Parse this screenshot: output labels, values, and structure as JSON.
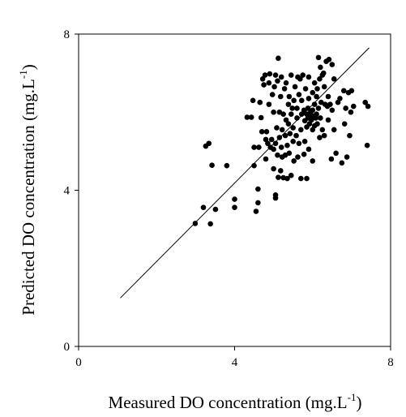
{
  "chart_data": {
    "type": "scatter",
    "title": "",
    "xlabel": "Measured DO concentration (mg.L",
    "xlabel_sup": "-1",
    "xlabel_end": ")",
    "ylabel": "Predicted DO concentration (mg.L",
    "ylabel_sup": "-1",
    "ylabel_end": ")",
    "xlim": [
      0,
      8
    ],
    "ylim": [
      0,
      8
    ],
    "xticks": [
      "0",
      "4",
      "8"
    ],
    "yticks": [
      "0",
      "4",
      "8"
    ],
    "grid": false,
    "line": {
      "x": [
        1.07,
        7.45
      ],
      "y": [
        1.24,
        7.65
      ]
    },
    "points": [
      [
        2.99,
        3.15
      ],
      [
        3.2,
        3.56
      ],
      [
        3.26,
        5.13
      ],
      [
        3.34,
        5.2
      ],
      [
        3.38,
        3.14
      ],
      [
        3.42,
        4.64
      ],
      [
        3.51,
        3.51
      ],
      [
        3.8,
        4.63
      ],
      [
        4.0,
        3.77
      ],
      [
        4.0,
        3.56
      ],
      [
        4.32,
        5.87
      ],
      [
        4.43,
        5.87
      ],
      [
        4.47,
        6.3
      ],
      [
        4.5,
        4.63
      ],
      [
        4.5,
        5.1
      ],
      [
        4.55,
        3.46
      ],
      [
        4.6,
        3.68
      ],
      [
        4.6,
        4.03
      ],
      [
        4.62,
        5.1
      ],
      [
        4.65,
        6.25
      ],
      [
        4.68,
        5.86
      ],
      [
        4.7,
        5.5
      ],
      [
        4.72,
        6.85
      ],
      [
        4.75,
        6.7
      ],
      [
        4.78,
        6.95
      ],
      [
        4.8,
        4.8
      ],
      [
        4.8,
        5.3
      ],
      [
        4.82,
        5.5
      ],
      [
        4.85,
        5.2
      ],
      [
        4.88,
        6.2
      ],
      [
        4.88,
        6.75
      ],
      [
        4.9,
        6.98
      ],
      [
        4.92,
        5.1
      ],
      [
        4.95,
        5.3
      ],
      [
        4.97,
        6.45
      ],
      [
        5.0,
        4.55
      ],
      [
        5.0,
        5.05
      ],
      [
        5.0,
        6.0
      ],
      [
        5.02,
        6.65
      ],
      [
        5.05,
        3.8
      ],
      [
        5.05,
        3.88
      ],
      [
        5.05,
        6.95
      ],
      [
        5.05,
        5.2
      ],
      [
        5.08,
        5.6
      ],
      [
        5.1,
        4.9
      ],
      [
        5.1,
        6.8
      ],
      [
        5.12,
        4.33
      ],
      [
        5.12,
        7.38
      ],
      [
        5.15,
        5.35
      ],
      [
        5.15,
        6.0
      ],
      [
        5.18,
        4.5
      ],
      [
        5.18,
        6.4
      ],
      [
        5.2,
        5.1
      ],
      [
        5.2,
        6.9
      ],
      [
        5.22,
        4.85
      ],
      [
        5.22,
        5.55
      ],
      [
        5.25,
        4.32
      ],
      [
        5.25,
        5.95
      ],
      [
        5.28,
        6.6
      ],
      [
        5.3,
        4.9
      ],
      [
        5.3,
        5.4
      ],
      [
        5.32,
        5.8
      ],
      [
        5.32,
        6.75
      ],
      [
        5.35,
        4.3
      ],
      [
        5.35,
        5.15
      ],
      [
        5.38,
        5.7
      ],
      [
        5.38,
        6.2
      ],
      [
        5.4,
        4.95
      ],
      [
        5.4,
        6.4
      ],
      [
        5.42,
        5.45
      ],
      [
        5.45,
        4.38
      ],
      [
        5.45,
        5.95
      ],
      [
        5.45,
        6.95
      ],
      [
        5.48,
        6.1
      ],
      [
        5.5,
        5.25
      ],
      [
        5.5,
        5.6
      ],
      [
        5.52,
        4.75
      ],
      [
        5.52,
        6.3
      ],
      [
        5.55,
        6.65
      ],
      [
        5.58,
        5.4
      ],
      [
        5.6,
        5.85
      ],
      [
        5.6,
        6.1
      ],
      [
        5.62,
        4.85
      ],
      [
        5.62,
        6.9
      ],
      [
        5.65,
        5.2
      ],
      [
        5.65,
        6.45
      ],
      [
        5.68,
        6.85
      ],
      [
        5.7,
        4.3
      ],
      [
        5.7,
        5.55
      ],
      [
        5.72,
        5.95
      ],
      [
        5.72,
        6.3
      ],
      [
        5.75,
        6.95
      ],
      [
        5.78,
        4.92
      ],
      [
        5.78,
        6.05
      ],
      [
        5.8,
        5.25
      ],
      [
        5.8,
        5.78
      ],
      [
        5.82,
        6.6
      ],
      [
        5.85,
        4.3
      ],
      [
        5.85,
        5.95
      ],
      [
        5.85,
        5.62
      ],
      [
        5.88,
        5.85
      ],
      [
        5.88,
        6.1
      ],
      [
        5.9,
        5.05
      ],
      [
        5.9,
        6.35
      ],
      [
        5.9,
        6.9
      ],
      [
        5.92,
        5.7
      ],
      [
        5.95,
        5.92
      ],
      [
        5.95,
        6.0
      ],
      [
        5.97,
        5.8
      ],
      [
        6.0,
        4.75
      ],
      [
        6.0,
        5.55
      ],
      [
        6.0,
        6.05
      ],
      [
        6.0,
        6.5
      ],
      [
        6.02,
        5.9
      ],
      [
        6.05,
        5.65
      ],
      [
        6.05,
        6.2
      ],
      [
        6.05,
        6.75
      ],
      [
        6.08,
        5.85
      ],
      [
        6.1,
        5.95
      ],
      [
        6.1,
        6.4
      ],
      [
        6.12,
        5.7
      ],
      [
        6.12,
        6.6
      ],
      [
        6.15,
        6.1
      ],
      [
        6.15,
        7.4
      ],
      [
        6.18,
        5.35
      ],
      [
        6.18,
        6.85
      ],
      [
        6.2,
        5.85
      ],
      [
        6.2,
        7.15
      ],
      [
        6.22,
        6.25
      ],
      [
        6.25,
        5.55
      ],
      [
        6.25,
        6.95
      ],
      [
        6.28,
        7.0
      ],
      [
        6.3,
        5.4
      ],
      [
        6.3,
        6.65
      ],
      [
        6.32,
        6.2
      ],
      [
        6.35,
        7.3
      ],
      [
        6.38,
        6.15
      ],
      [
        6.4,
        5.8
      ],
      [
        6.4,
        6.4
      ],
      [
        6.42,
        7.35
      ],
      [
        6.45,
        6.2
      ],
      [
        6.48,
        4.8
      ],
      [
        6.5,
        6.05
      ],
      [
        6.5,
        7.22
      ],
      [
        6.55,
        5.55
      ],
      [
        6.55,
        6.85
      ],
      [
        6.6,
        4.95
      ],
      [
        6.65,
        6.25
      ],
      [
        6.7,
        6.35
      ],
      [
        6.75,
        4.7
      ],
      [
        6.8,
        6.55
      ],
      [
        6.82,
        5.7
      ],
      [
        6.85,
        6.1
      ],
      [
        6.88,
        4.85
      ],
      [
        6.92,
        6.5
      ],
      [
        6.95,
        5.4
      ],
      [
        6.98,
        6.0
      ],
      [
        7.0,
        6.55
      ],
      [
        7.05,
        6.15
      ],
      [
        7.35,
        6.25
      ],
      [
        7.4,
        5.15
      ],
      [
        7.42,
        6.15
      ]
    ]
  }
}
